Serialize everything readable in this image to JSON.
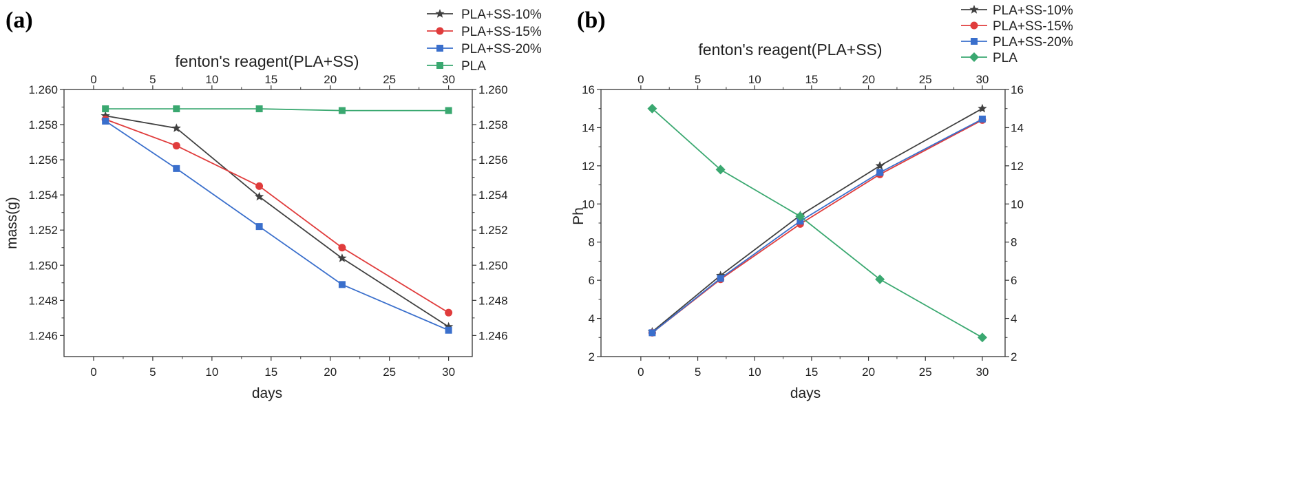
{
  "chart_data": [
    {
      "type": "line",
      "panel_label": "(a)",
      "title": "fenton's reagent(PLA+SS)",
      "xlabel": "days",
      "ylabel": "mass(g)",
      "xlim": [
        -2.5,
        32
      ],
      "ylim": [
        1.2448,
        1.26
      ],
      "x_ticks": [
        0,
        5,
        10,
        15,
        20,
        25,
        30
      ],
      "y_ticks": [
        1.246,
        1.248,
        1.25,
        1.252,
        1.254,
        1.256,
        1.258,
        1.26
      ],
      "y_tick_labels": [
        "1.246",
        "1.248",
        "1.250",
        "1.252",
        "1.254",
        "1.256",
        "1.258",
        "1.260"
      ],
      "x": [
        1,
        7,
        14,
        21,
        30
      ],
      "legend_position": "top-right",
      "series": [
        {
          "name": "PLA+SS-10%",
          "color": "#404040",
          "marker": "star",
          "values": [
            1.2585,
            1.2578,
            1.2539,
            1.2504,
            1.2465
          ]
        },
        {
          "name": "PLA+SS-15%",
          "color": "#e03c3c",
          "marker": "circle",
          "values": [
            1.2583,
            1.2568,
            1.2545,
            1.251,
            1.2473
          ]
        },
        {
          "name": "PLA+SS-20%",
          "color": "#3a6fcc",
          "marker": "square",
          "values": [
            1.2582,
            1.2555,
            1.2522,
            1.2489,
            1.2463
          ]
        },
        {
          "name": "PLA",
          "color": "#3aa870",
          "marker": "square",
          "values": [
            1.2589,
            1.2589,
            1.2589,
            1.2588,
            1.2588
          ]
        }
      ]
    },
    {
      "type": "line",
      "panel_label": "(b)",
      "title": "fenton's reagent(PLA+SS)",
      "xlabel": "days",
      "ylabel": "Ph",
      "xlim": [
        -3.5,
        32
      ],
      "ylim": [
        2,
        16
      ],
      "x_ticks": [
        0,
        5,
        10,
        15,
        20,
        25,
        30
      ],
      "y_ticks": [
        2,
        4,
        6,
        8,
        10,
        12,
        14,
        16
      ],
      "y_tick_labels": [
        "2",
        "4",
        "6",
        "8",
        "10",
        "12",
        "14",
        "16"
      ],
      "x": [
        1,
        7,
        14,
        21,
        30
      ],
      "legend_position": "top-right",
      "series": [
        {
          "name": "PLA+SS-10%",
          "color": "#404040",
          "marker": "star",
          "values": [
            3.3,
            6.25,
            9.4,
            12.0,
            15.0
          ]
        },
        {
          "name": "PLA+SS-15%",
          "color": "#e03c3c",
          "marker": "circle",
          "values": [
            3.25,
            6.05,
            8.95,
            11.55,
            14.4
          ]
        },
        {
          "name": "PLA+SS-20%",
          "color": "#3a6fcc",
          "marker": "square",
          "values": [
            3.25,
            6.1,
            9.1,
            11.65,
            14.45
          ]
        },
        {
          "name": "PLA",
          "color": "#3aa870",
          "marker": "diamond",
          "values": [
            15.0,
            11.8,
            9.35,
            6.05,
            3.0
          ]
        }
      ]
    }
  ]
}
